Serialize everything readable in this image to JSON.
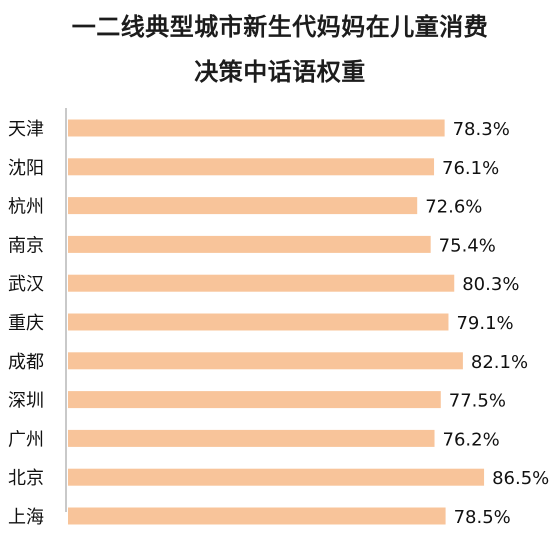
{
  "chart_data": {
    "type": "bar",
    "orientation": "horizontal",
    "title_lines": [
      "一二线典型城市新生代妈妈在儿童消费",
      "决策中话语权重"
    ],
    "categories": [
      "天津",
      "沈阳",
      "杭州",
      "南京",
      "武汉",
      "重庆",
      "成都",
      "深圳",
      "广州",
      "北京",
      "上海"
    ],
    "values": [
      78.3,
      76.1,
      72.6,
      75.4,
      80.3,
      79.1,
      82.1,
      77.5,
      76.2,
      86.5,
      78.5
    ],
    "value_labels": [
      "78.3%",
      "76.1%",
      "72.6%",
      "75.4%",
      "80.3%",
      "79.1%",
      "82.1%",
      "77.5%",
      "76.2%",
      "86.5%",
      "78.5%"
    ],
    "unit": "%",
    "bar_color": "#f8c49a",
    "axis_color": "#b7b7b7",
    "grid": false,
    "legend": "none"
  }
}
